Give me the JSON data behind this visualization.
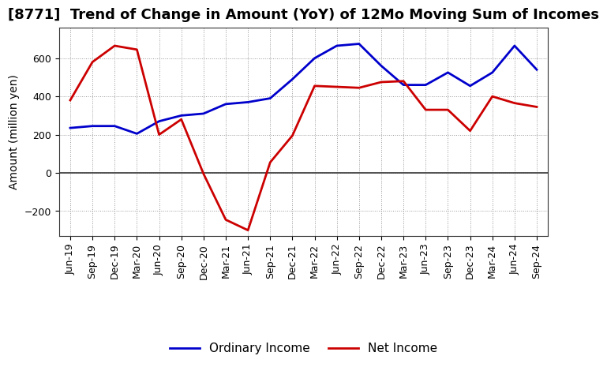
{
  "title": "[8771]  Trend of Change in Amount (YoY) of 12Mo Moving Sum of Incomes",
  "ylabel": "Amount (million yen)",
  "x_labels": [
    "Jun-19",
    "Sep-19",
    "Dec-19",
    "Mar-20",
    "Jun-20",
    "Sep-20",
    "Dec-20",
    "Mar-21",
    "Jun-21",
    "Sep-21",
    "Dec-21",
    "Mar-22",
    "Jun-22",
    "Sep-22",
    "Dec-22",
    "Mar-23",
    "Jun-23",
    "Sep-23",
    "Dec-23",
    "Mar-24",
    "Jun-24",
    "Sep-24"
  ],
  "ordinary_income": [
    235,
    245,
    245,
    205,
    270,
    300,
    310,
    360,
    370,
    390,
    490,
    600,
    665,
    675,
    560,
    460,
    460,
    525,
    455,
    525,
    665,
    540
  ],
  "net_income": [
    380,
    580,
    665,
    645,
    200,
    280,
    -5,
    -245,
    -300,
    55,
    195,
    455,
    450,
    445,
    475,
    480,
    330,
    330,
    220,
    400,
    365,
    345
  ],
  "ordinary_color": "#0000cc",
  "net_color": "#cc0000",
  "line_width": 2.0,
  "ylim": [
    -330,
    760
  ],
  "yticks": [
    -200,
    0,
    200,
    400,
    600
  ],
  "background_color": "#ffffff",
  "grid_color": "#999999",
  "title_fontsize": 13,
  "legend_fontsize": 11,
  "axis_label_fontsize": 10,
  "tick_fontsize": 9
}
